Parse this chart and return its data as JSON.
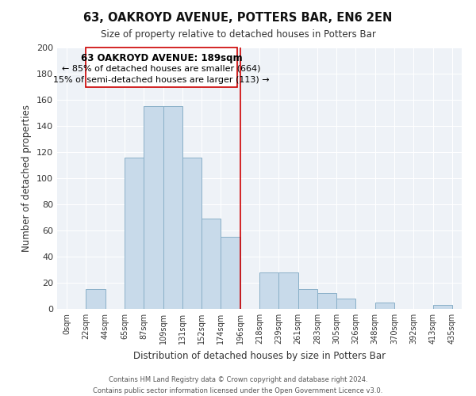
{
  "title": "63, OAKROYD AVENUE, POTTERS BAR, EN6 2EN",
  "subtitle": "Size of property relative to detached houses in Potters Bar",
  "xlabel": "Distribution of detached houses by size in Potters Bar",
  "ylabel": "Number of detached properties",
  "bar_color": "#c8daea",
  "bar_edge_color": "#8ab0c8",
  "background_color": "#ffffff",
  "plot_bg_color": "#eef2f7",
  "grid_color": "#ffffff",
  "tick_labels": [
    "0sqm",
    "22sqm",
    "44sqm",
    "65sqm",
    "87sqm",
    "109sqm",
    "131sqm",
    "152sqm",
    "174sqm",
    "196sqm",
    "218sqm",
    "239sqm",
    "261sqm",
    "283sqm",
    "305sqm",
    "326sqm",
    "348sqm",
    "370sqm",
    "392sqm",
    "413sqm",
    "435sqm"
  ],
  "bar_heights": [
    0,
    15,
    0,
    116,
    155,
    155,
    116,
    69,
    55,
    0,
    28,
    28,
    15,
    12,
    8,
    0,
    5,
    0,
    0,
    3,
    0
  ],
  "vline_x_index": 9,
  "vline_color": "#cc0000",
  "ylim": [
    0,
    200
  ],
  "yticks": [
    0,
    20,
    40,
    60,
    80,
    100,
    120,
    140,
    160,
    180,
    200
  ],
  "annotation_title": "63 OAKROYD AVENUE: 189sqm",
  "annotation_line1": "← 85% of detached houses are smaller (664)",
  "annotation_line2": "15% of semi-detached houses are larger (113) →",
  "footer_line1": "Contains HM Land Registry data © Crown copyright and database right 2024.",
  "footer_line2": "Contains public sector information licensed under the Open Government Licence v3.0."
}
